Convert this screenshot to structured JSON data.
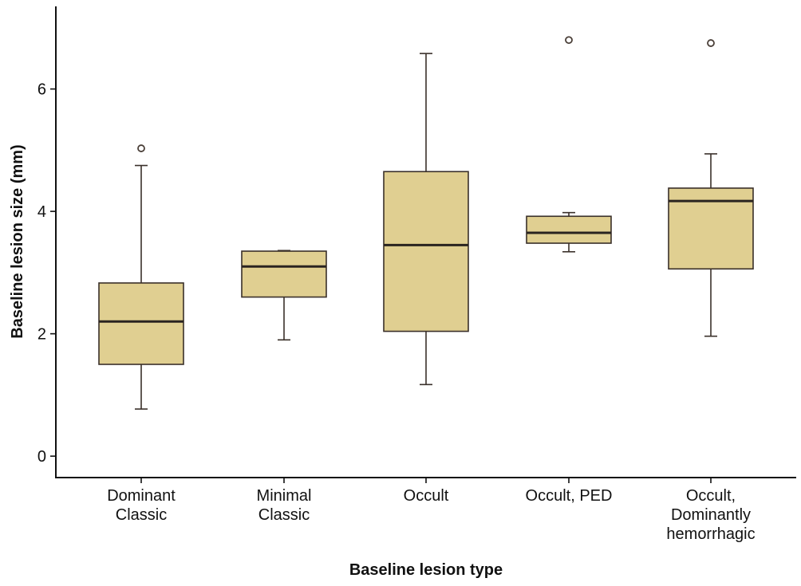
{
  "chart_data": {
    "type": "boxplot",
    "title": "",
    "xlabel": "Baseline lesion type",
    "ylabel": "Baseline lesion size (mm)",
    "ylim": [
      -0.35,
      7.35
    ],
    "yticks": [
      0,
      2,
      4,
      6
    ],
    "grid": false,
    "legend": "none",
    "box_fill": "#e0cf91",
    "box_stroke": "#3a302a",
    "categories": [
      [
        "Dominant",
        "Classic"
      ],
      [
        "Minimal",
        "Classic"
      ],
      [
        "Occult"
      ],
      [
        "Occult, PED"
      ],
      [
        "Occult,",
        "Dominantly",
        "hemorrhagic"
      ]
    ],
    "boxes": [
      {
        "whisker_low": 0.77,
        "q1": 1.5,
        "median": 2.2,
        "q3": 2.83,
        "whisker_high": 4.75,
        "outliers": [
          5.03
        ]
      },
      {
        "whisker_low": 1.9,
        "q1": 2.6,
        "median": 3.1,
        "q3": 3.35,
        "whisker_high": 3.36,
        "outliers": []
      },
      {
        "whisker_low": 1.17,
        "q1": 2.04,
        "median": 3.45,
        "q3": 4.65,
        "whisker_high": 6.58,
        "outliers": []
      },
      {
        "whisker_low": 3.34,
        "q1": 3.48,
        "median": 3.65,
        "q3": 3.92,
        "whisker_high": 3.98,
        "outliers": [
          6.8
        ]
      },
      {
        "whisker_low": 1.96,
        "q1": 3.06,
        "median": 4.17,
        "q3": 4.38,
        "whisker_high": 4.94,
        "outliers": [
          6.75
        ]
      }
    ]
  }
}
